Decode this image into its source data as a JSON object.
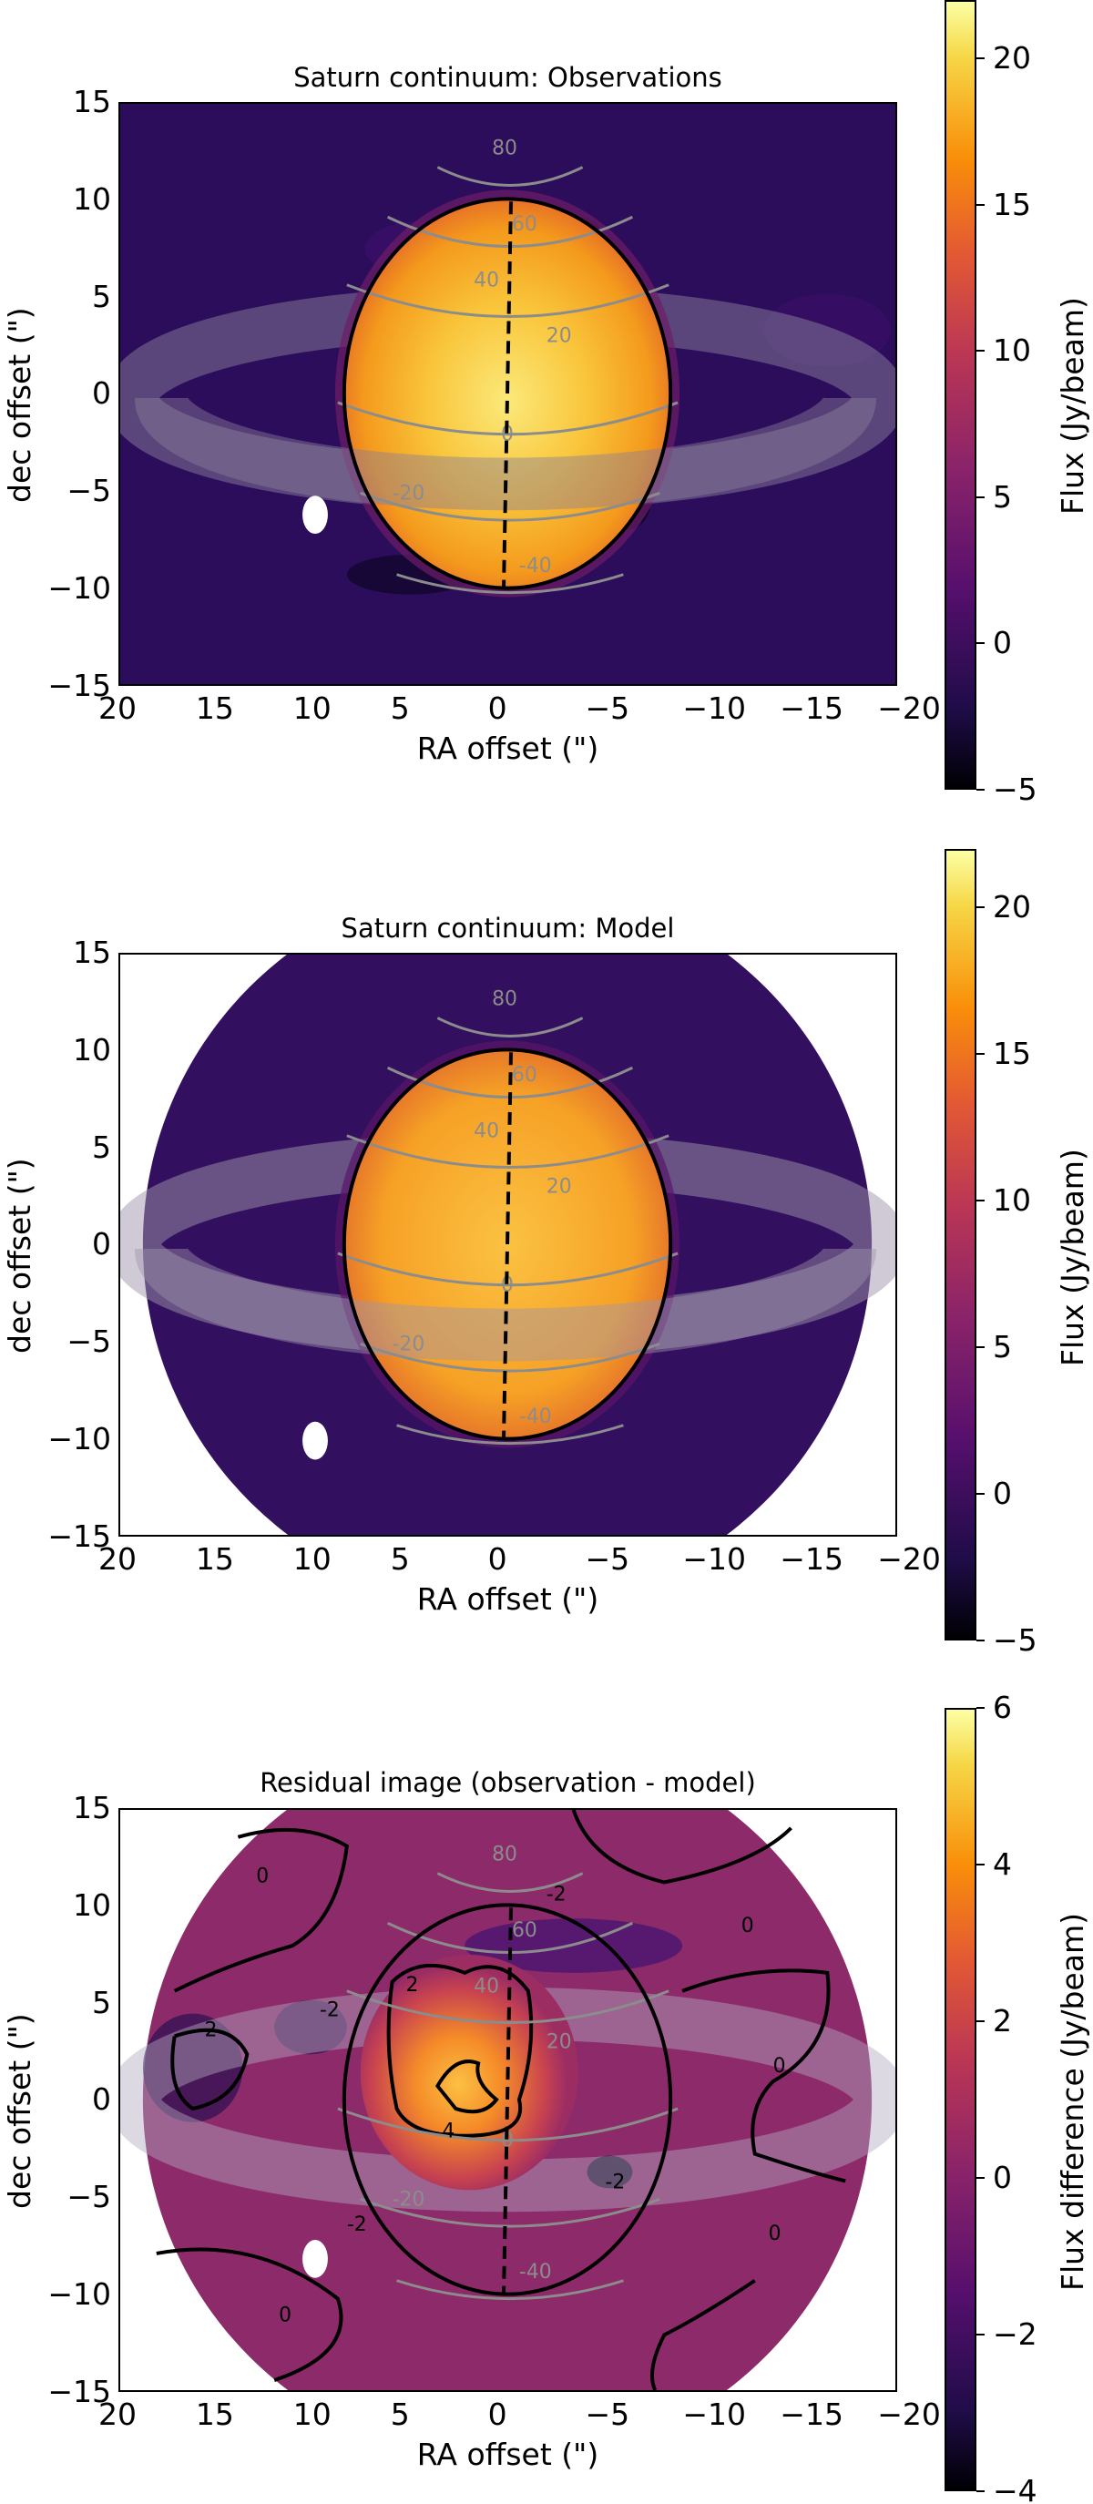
{
  "chart_data": [
    {
      "type": "heatmap",
      "title": "Saturn continuum: Observations",
      "xlabel": "RA offset (\")",
      "ylabel": "dec offset (\")",
      "xlim": [
        20,
        -20
      ],
      "ylim": [
        -15,
        15
      ],
      "xticks": [
        "20",
        "15",
        "10",
        "5",
        "0",
        "−5",
        "−10",
        "−15",
        "−20"
      ],
      "yticks": [
        "15",
        "10",
        "5",
        "0",
        "−5",
        "−10",
        "−15"
      ],
      "colorbar": {
        "label": "Flux (Jy/beam)",
        "range": [
          -5,
          22
        ],
        "ticks": [
          "20",
          "15",
          "10",
          "5",
          "0",
          "−5"
        ],
        "colormap": "inferno"
      },
      "overlays": {
        "latitude_contours": [
          "80",
          "60",
          "40",
          "20",
          "0",
          "-20",
          "-40"
        ],
        "planet_limb": "black ellipse",
        "central_meridian": "dashed",
        "rings": "translucent grey",
        "beam": "white ellipse at (10, -10)"
      }
    },
    {
      "type": "heatmap",
      "title": "Saturn continuum: Model",
      "xlabel": "RA offset (\")",
      "ylabel": "dec offset (\")",
      "xlim": [
        20,
        -20
      ],
      "ylim": [
        -15,
        15
      ],
      "xticks": [
        "20",
        "15",
        "10",
        "5",
        "0",
        "−5",
        "−10",
        "−15",
        "−20"
      ],
      "yticks": [
        "15",
        "10",
        "5",
        "0",
        "−5",
        "−10",
        "−15"
      ],
      "colorbar": {
        "label": "Flux (Jy/beam)",
        "range": [
          -5,
          22
        ],
        "ticks": [
          "20",
          "15",
          "10",
          "5",
          "0",
          "−5"
        ],
        "colormap": "inferno"
      },
      "overlays": {
        "latitude_contours": [
          "80",
          "60",
          "40",
          "20",
          "0",
          "-20",
          "-40"
        ],
        "beam": "white ellipse at (10, -10)"
      }
    },
    {
      "type": "heatmap",
      "title": "Residual image (observation - model)",
      "xlabel": "RA offset (\")",
      "ylabel": "dec offset (\")",
      "xlim": [
        20,
        -20
      ],
      "ylim": [
        -15,
        15
      ],
      "xticks": [
        "20",
        "15",
        "10",
        "5",
        "0",
        "−5",
        "−10",
        "−15",
        "−20"
      ],
      "yticks": [
        "15",
        "10",
        "5",
        "0",
        "−5",
        "−10",
        "−15"
      ],
      "colorbar": {
        "label": "Flux difference (Jy/beam)",
        "range": [
          -4,
          6
        ],
        "ticks": [
          "6",
          "4",
          "2",
          "0",
          "−2",
          "−4"
        ],
        "colormap": "inferno"
      },
      "residual_contour_levels": [
        "-2",
        "0",
        "2",
        "4"
      ],
      "overlays": {
        "latitude_contours": [
          "80",
          "60",
          "40",
          "20",
          "0",
          "-20",
          "-40"
        ]
      }
    }
  ],
  "panels": [
    {
      "title": "Saturn continuum: Observations",
      "xlabel": "RA offset (\")",
      "ylabel": "dec offset (\")",
      "clabel": "Flux (Jy/beam)"
    },
    {
      "title": "Saturn continuum: Model",
      "xlabel": "RA offset (\")",
      "ylabel": "dec offset (\")",
      "clabel": "Flux (Jy/beam)"
    },
    {
      "title": "Residual image (observation - model)",
      "xlabel": "RA offset (\")",
      "ylabel": "dec offset (\")",
      "clabel": "Flux difference (Jy/beam)"
    }
  ],
  "xticks": [
    "20",
    "15",
    "10",
    "5",
    "0",
    "−5",
    "−10",
    "−15",
    "−20"
  ],
  "yticks": [
    "15",
    "10",
    "5",
    "0",
    "−5",
    "−10",
    "−15"
  ],
  "cticks_flux": [
    "20",
    "15",
    "10",
    "5",
    "0",
    "−5"
  ],
  "cticks_resid": [
    "6",
    "4",
    "2",
    "0",
    "−2",
    "−4"
  ],
  "lat_labels": [
    "80",
    "60",
    "40",
    "20",
    "0",
    "-20",
    "-40"
  ]
}
